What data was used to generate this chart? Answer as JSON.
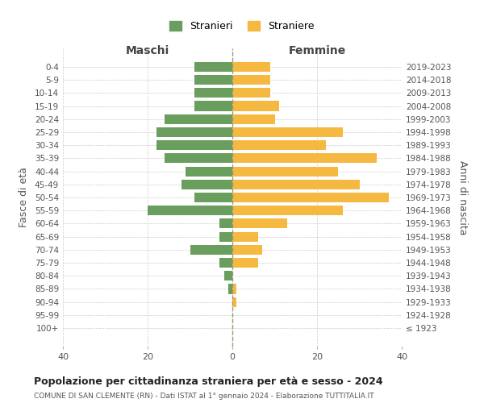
{
  "age_groups": [
    "100+",
    "95-99",
    "90-94",
    "85-89",
    "80-84",
    "75-79",
    "70-74",
    "65-69",
    "60-64",
    "55-59",
    "50-54",
    "45-49",
    "40-44",
    "35-39",
    "30-34",
    "25-29",
    "20-24",
    "15-19",
    "10-14",
    "5-9",
    "0-4"
  ],
  "birth_years": [
    "≤ 1923",
    "1924-1928",
    "1929-1933",
    "1934-1938",
    "1939-1943",
    "1944-1948",
    "1949-1953",
    "1954-1958",
    "1959-1963",
    "1964-1968",
    "1969-1973",
    "1974-1978",
    "1979-1983",
    "1984-1988",
    "1989-1993",
    "1994-1998",
    "1999-2003",
    "2004-2008",
    "2009-2013",
    "2014-2018",
    "2019-2023"
  ],
  "maschi": [
    0,
    0,
    0,
    1,
    2,
    3,
    10,
    3,
    3,
    20,
    9,
    12,
    11,
    16,
    18,
    18,
    16,
    9,
    9,
    9,
    9
  ],
  "femmine": [
    0,
    0,
    1,
    1,
    0,
    6,
    7,
    6,
    13,
    26,
    37,
    30,
    25,
    34,
    22,
    26,
    10,
    11,
    9,
    9,
    9
  ],
  "color_maschi": "#6a9e5e",
  "color_femmine": "#f5b942",
  "title": "Popolazione per cittadinanza straniera per età e sesso - 2024",
  "subtitle": "COMUNE DI SAN CLEMENTE (RN) - Dati ISTAT al 1° gennaio 2024 - Elaborazione TUTTITALIA.IT",
  "label_maschi": "Stranieri",
  "label_femmine": "Straniere",
  "xlabel_left": "Maschi",
  "xlabel_right": "Femmine",
  "ylabel_left": "Fasce di età",
  "ylabel_right": "Anni di nascita",
  "xlim": 40,
  "background_color": "#ffffff",
  "grid_color": "#cccccc"
}
